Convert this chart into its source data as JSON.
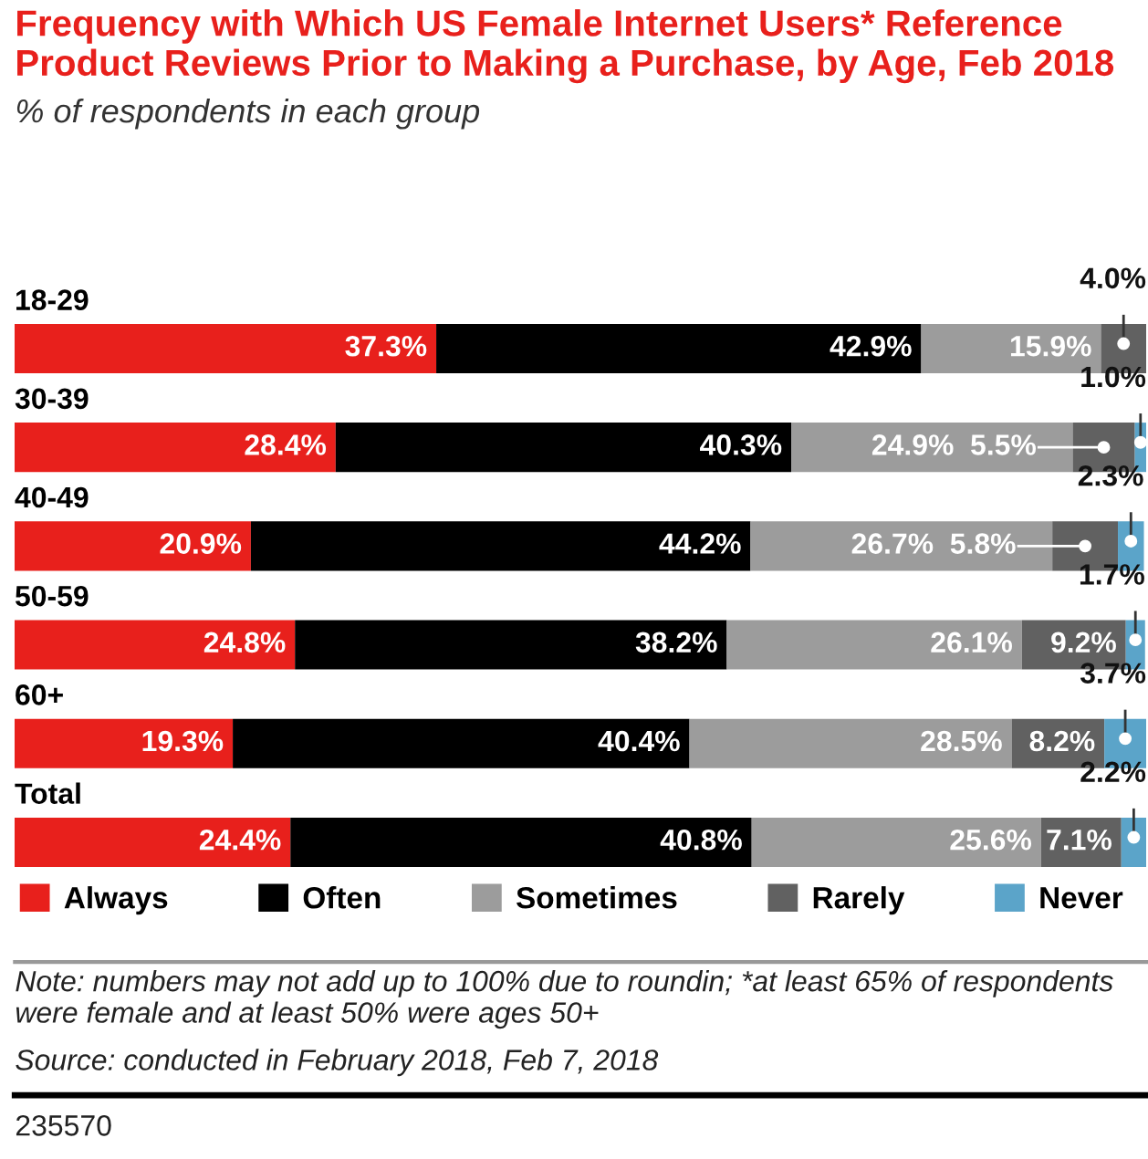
{
  "chart_data": {
    "type": "bar",
    "orientation": "horizontal",
    "stacked": true,
    "legend": "bottom",
    "title": "Frequency with Which US Female Internet Users* Reference Product Reviews Prior to Making a Purchase, by Age, Feb 2018",
    "subtitle": "% of respondents in each group",
    "categories": [
      "18-29",
      "30-39",
      "40-49",
      "50-59",
      "60+",
      "Total"
    ],
    "series": [
      {
        "name": "Always",
        "color": "#e8201c",
        "values": [
          37.3,
          28.4,
          20.9,
          24.8,
          19.3,
          24.4
        ],
        "value_labels": [
          "37.3%",
          "28.4%",
          "20.9%",
          "24.8%",
          "19.3%",
          "24.4%"
        ]
      },
      {
        "name": "Often",
        "color": "#000000",
        "values": [
          42.9,
          40.3,
          44.2,
          38.2,
          40.4,
          40.8
        ],
        "value_labels": [
          "42.9%",
          "40.3%",
          "44.2%",
          "38.2%",
          "40.4%",
          "40.8%"
        ]
      },
      {
        "name": "Sometimes",
        "color": "#9c9c9c",
        "values": [
          15.9,
          24.9,
          26.7,
          26.1,
          28.5,
          25.6
        ],
        "value_labels": [
          "15.9%",
          "24.9%",
          "26.7%",
          "26.1%",
          "28.5%",
          "25.6%"
        ]
      },
      {
        "name": "Rarely",
        "color": "#616161",
        "values": [
          4.0,
          5.5,
          5.8,
          9.2,
          8.2,
          7.1
        ],
        "value_labels": [
          "4.0%",
          "5.5%",
          "5.8%",
          "9.2%",
          "8.2%",
          "7.1%"
        ]
      },
      {
        "name": "Never",
        "color": "#5ba4c9",
        "values": [
          null,
          1.0,
          2.3,
          1.7,
          3.7,
          2.2
        ],
        "value_labels": [
          null,
          "1.0%",
          "2.3%",
          "1.7%",
          "3.7%",
          "2.2%"
        ]
      }
    ],
    "annotations": [
      "Note: numbers may not add up to 100% due to roundin; *at least 65% of respondents were female and at least 50% were ages 50+",
      "Source: conducted in February 2018, Feb 7, 2018",
      "235570"
    ]
  }
}
